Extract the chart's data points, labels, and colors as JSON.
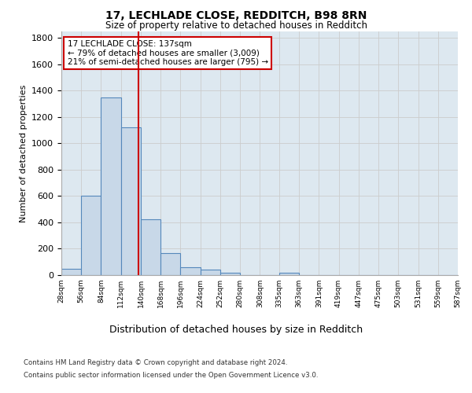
{
  "title_line1": "17, LECHLADE CLOSE, REDDITCH, B98 8RN",
  "title_line2": "Size of property relative to detached houses in Redditch",
  "xlabel": "Distribution of detached houses by size in Redditch",
  "ylabel": "Number of detached properties",
  "bin_edges": [
    28,
    56,
    84,
    112,
    140,
    168,
    196,
    224,
    252,
    280,
    308,
    335,
    363,
    391,
    419,
    447,
    475,
    503,
    531,
    559,
    587
  ],
  "bar_heights": [
    50,
    600,
    1350,
    1120,
    425,
    170,
    60,
    40,
    15,
    0,
    0,
    20,
    0,
    0,
    0,
    0,
    0,
    0,
    0,
    0
  ],
  "bar_color": "#c8d8e8",
  "bar_edge_color": "#5588bb",
  "bar_linewidth": 0.8,
  "grid_color": "#cccccc",
  "background_color": "#dde8f0",
  "property_line_x": 137,
  "property_line_color": "#cc0000",
  "annotation_text": "17 LECHLADE CLOSE: 137sqm\n← 79% of detached houses are smaller (3,009)\n21% of semi-detached houses are larger (795) →",
  "annotation_box_color": "#ffffff",
  "annotation_border_color": "#cc0000",
  "ylim": [
    0,
    1850
  ],
  "yticks": [
    0,
    200,
    400,
    600,
    800,
    1000,
    1200,
    1400,
    1600,
    1800
  ],
  "footer_line1": "Contains HM Land Registry data © Crown copyright and database right 2024.",
  "footer_line2": "Contains public sector information licensed under the Open Government Licence v3.0."
}
